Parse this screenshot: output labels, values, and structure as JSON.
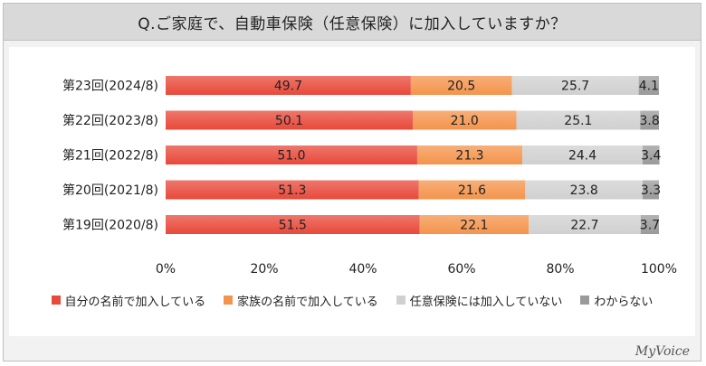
{
  "title": "Q.ご家庭で、自動車保険（任意保険）に加入していますか？",
  "logo": "MyVoice",
  "colors": {
    "series0": "#e8493a",
    "series1": "#f4944c",
    "series2": "#d0d0d0",
    "series3": "#9a9a9a"
  },
  "chart_data": {
    "type": "bar",
    "orientation": "horizontal",
    "stacked": true,
    "categories": [
      "第23回(2024/8)",
      "第22回(2023/8)",
      "第21回(2022/8)",
      "第20回(2021/8)",
      "第19回(2020/8)"
    ],
    "series": [
      {
        "name": "自分の名前で加入している",
        "values": [
          49.7,
          50.1,
          51.0,
          51.3,
          51.5
        ]
      },
      {
        "name": "家族の名前で加入している",
        "values": [
          20.5,
          21.0,
          21.3,
          21.6,
          22.1
        ]
      },
      {
        "name": "任意保険には加入していない",
        "values": [
          25.7,
          25.1,
          24.4,
          23.8,
          22.7
        ]
      },
      {
        "name": "わからない",
        "values": [
          4.1,
          3.8,
          3.4,
          3.3,
          3.7
        ]
      }
    ],
    "value_labels": [
      [
        "49.7",
        "50.1",
        "51.0",
        "51.3",
        "51.5"
      ],
      [
        "20.5",
        "21.0",
        "21.3",
        "21.6",
        "22.1"
      ],
      [
        "25.7",
        "25.1",
        "24.4",
        "23.8",
        "22.7"
      ],
      [
        "4.1",
        "3.8",
        "3.4",
        "3.3",
        "3.7"
      ]
    ],
    "xlim": [
      0,
      100
    ],
    "xticks": [
      "0%",
      "20%",
      "40%",
      "60%",
      "80%",
      "100%"
    ],
    "legend_position": "bottom",
    "grid": false
  }
}
